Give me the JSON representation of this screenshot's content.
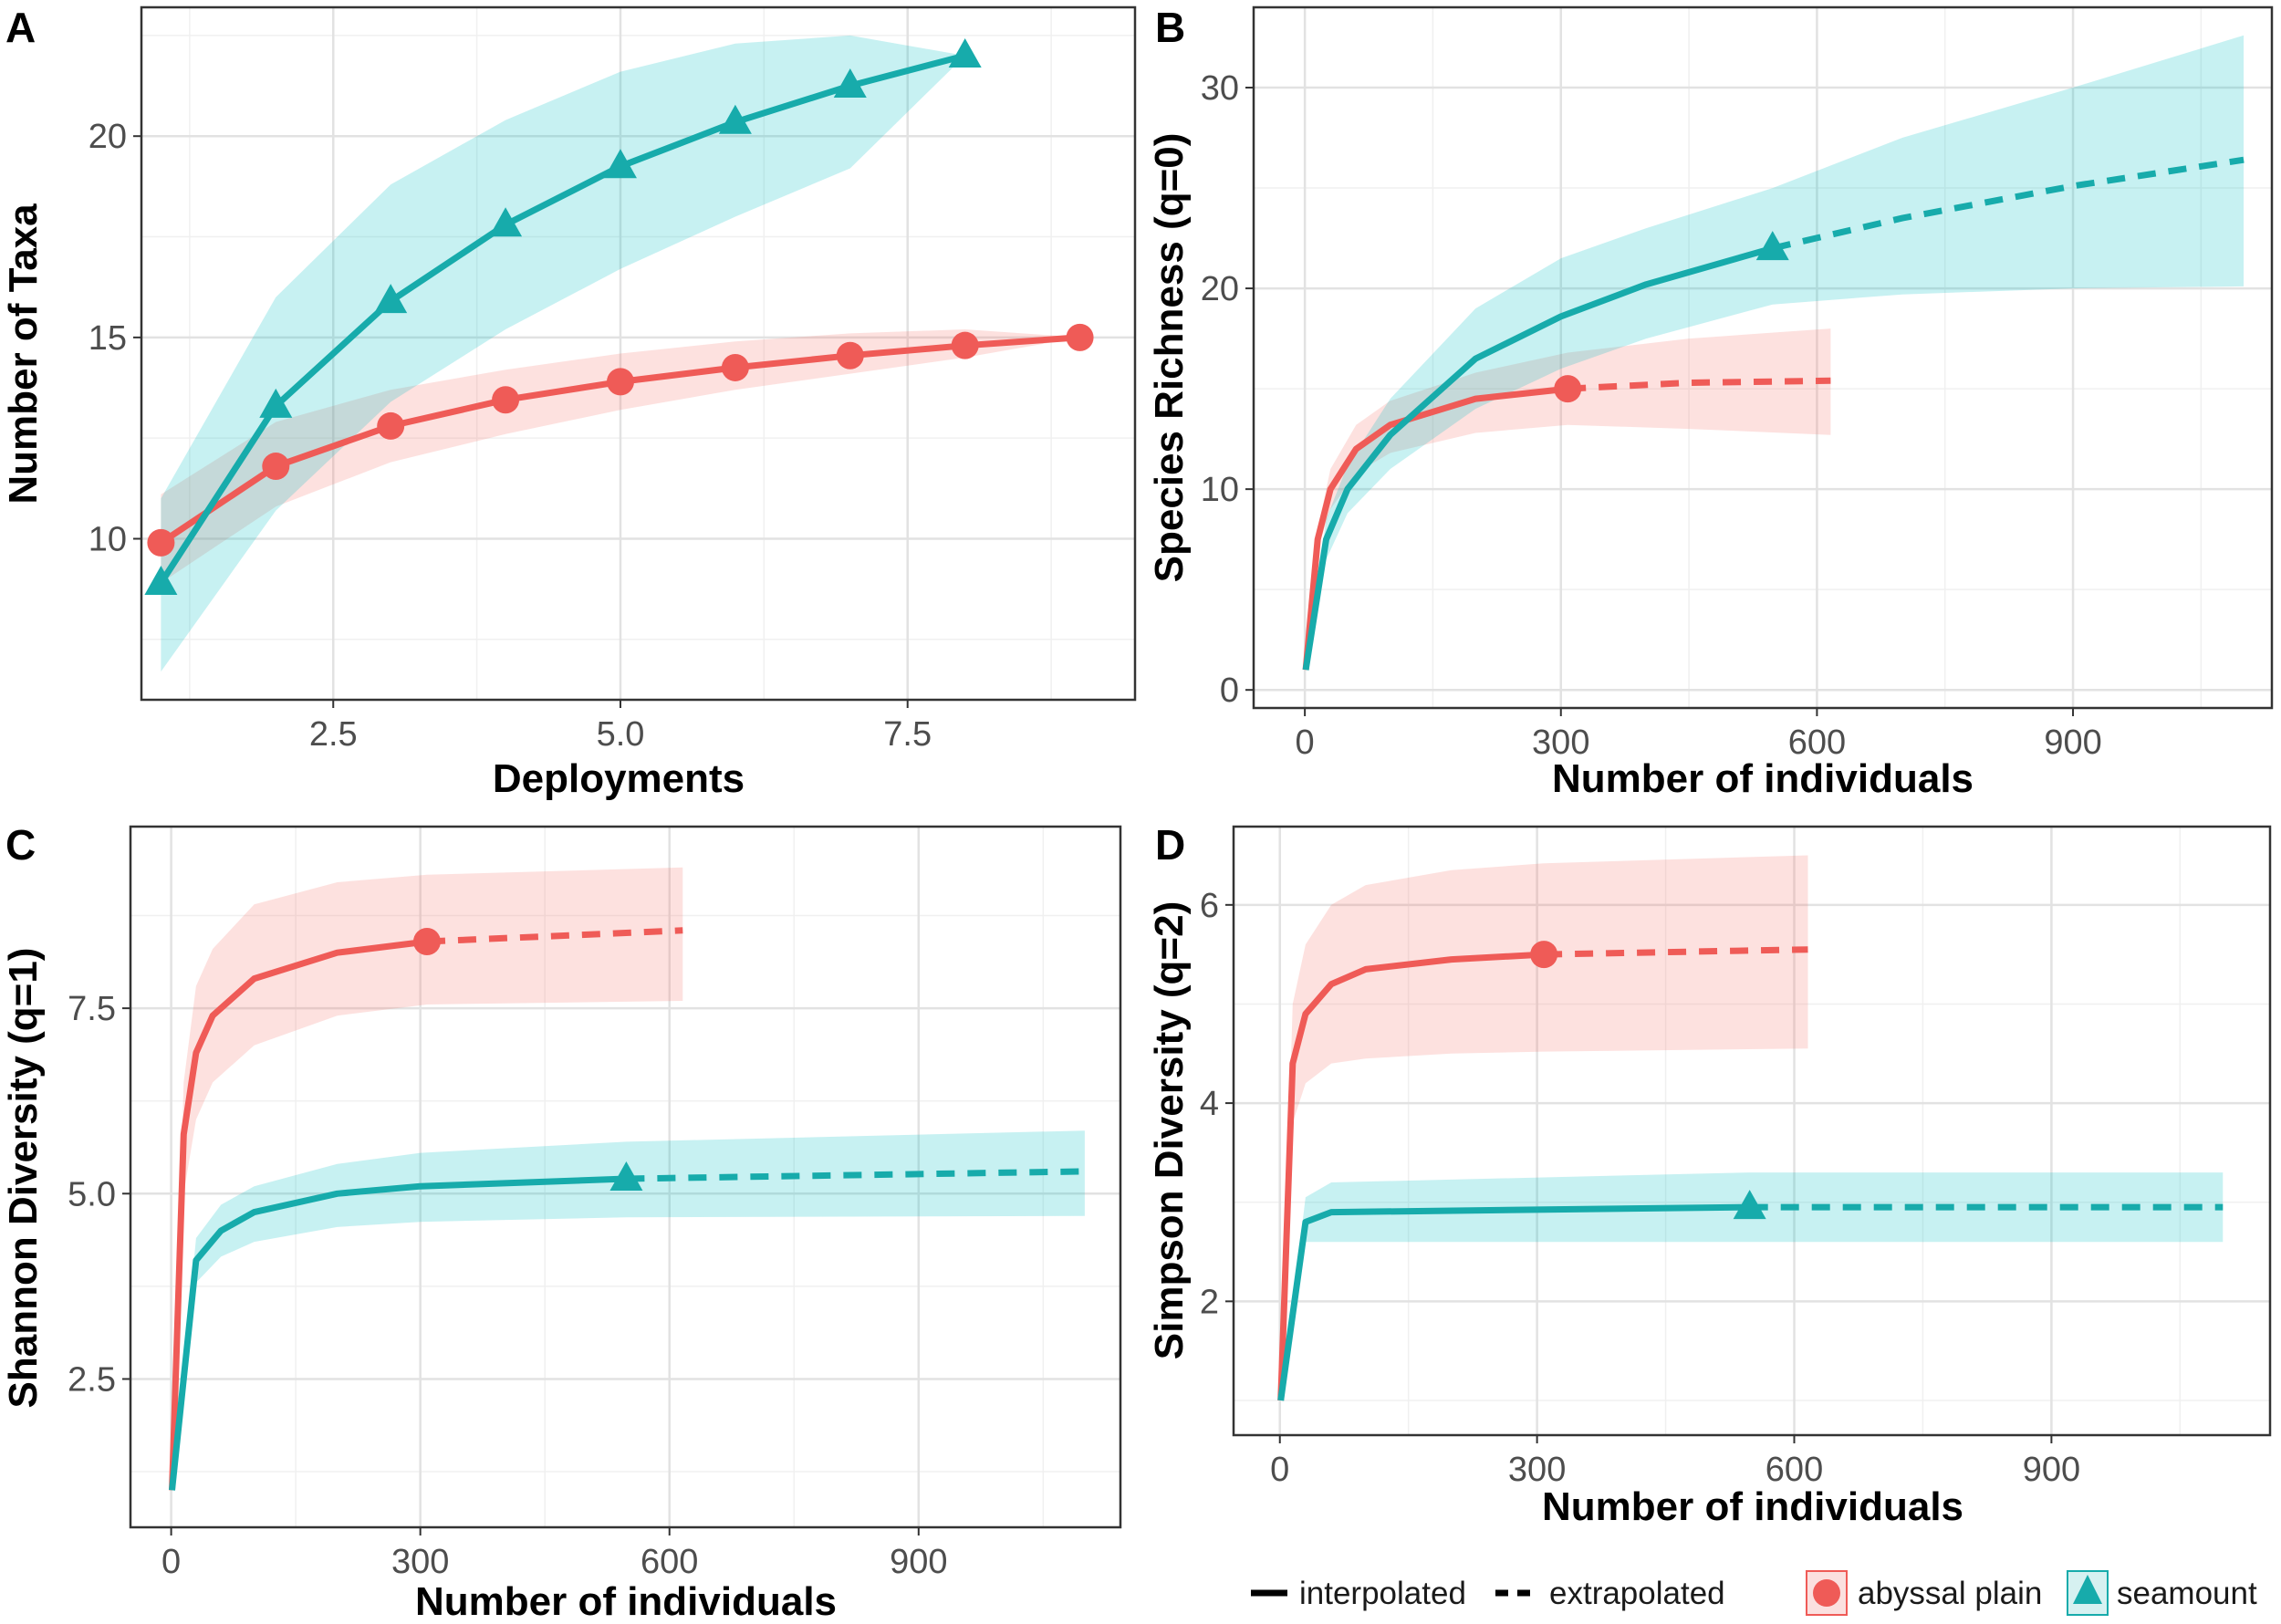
{
  "colors": {
    "abyssal_plain": "#EF5B57",
    "seamount": "#17ABAB",
    "abyssal_band": "#F8766D",
    "seamount_band": "#00BFC4"
  },
  "legend": {
    "interpolated": "interpolated",
    "extrapolated": "extrapolated",
    "abyssal_plain": "abyssal plain",
    "seamount": "seamount",
    "placement": "bottom-right"
  },
  "chart_data": [
    {
      "panel": "A",
      "type": "line",
      "grid": true,
      "xlabel": "Deployments",
      "ylabel": "Number of Taxa",
      "xlim": [
        0.83,
        9.48
      ],
      "ylim": [
        6.0,
        23.2
      ],
      "xticks": [
        2.5,
        5.0,
        7.5
      ],
      "xtick_labels": [
        "2.5",
        "5.0",
        "7.5"
      ],
      "yticks": [
        10,
        15,
        20
      ],
      "ytick_labels": [
        "10",
        "15",
        "20"
      ],
      "series": [
        {
          "name": "abyssal plain",
          "marker": "circle",
          "x": [
            1,
            2,
            3,
            4,
            5,
            6,
            7,
            8,
            9
          ],
          "y": [
            9.9,
            11.8,
            12.8,
            13.45,
            13.9,
            14.25,
            14.55,
            14.8,
            15.0
          ],
          "lower": [
            8.9,
            10.8,
            11.9,
            12.6,
            13.2,
            13.7,
            14.1,
            14.5,
            15.0
          ],
          "upper": [
            11.1,
            12.9,
            13.7,
            14.2,
            14.6,
            14.9,
            15.1,
            15.2,
            15.0
          ]
        },
        {
          "name": "seamount",
          "marker": "triangle",
          "x": [
            1,
            2,
            3,
            4,
            5,
            6,
            7,
            8
          ],
          "y": [
            8.9,
            13.3,
            15.9,
            17.8,
            19.25,
            20.35,
            21.25,
            22.0
          ],
          "lower": [
            6.7,
            10.7,
            13.4,
            15.2,
            16.7,
            18.0,
            19.2,
            22.0
          ],
          "upper": [
            11.0,
            16.0,
            18.8,
            20.4,
            21.6,
            22.3,
            22.5,
            22.0
          ]
        }
      ]
    },
    {
      "panel": "B",
      "type": "line",
      "grid": true,
      "xlabel": "Number of individuals",
      "ylabel": "Species Richness (q=0)",
      "xlim": [
        -60,
        1133
      ],
      "ylim": [
        -0.9,
        34
      ],
      "xticks": [
        0,
        300,
        600,
        900
      ],
      "xtick_labels": [
        "0",
        "300",
        "600",
        "900"
      ],
      "yticks": [
        0,
        10,
        20,
        30
      ],
      "ytick_labels": [
        "0",
        "10",
        "20",
        "30"
      ],
      "series": [
        {
          "name": "abyssal plain",
          "marker": "circle",
          "interpolated": {
            "x": [
              1,
              15,
              30,
              60,
              100,
              200,
              308
            ],
            "y": [
              1,
              7.5,
              10,
              12,
              13.2,
              14.5,
              15
            ]
          },
          "observed": {
            "x": 308,
            "y": 15
          },
          "extrapolated": {
            "x": [
              308,
              450,
              616
            ],
            "y": [
              15,
              15.3,
              15.4
            ]
          },
          "band": {
            "x": [
              1,
              15,
              30,
              60,
              100,
              200,
              308,
              450,
              616
            ],
            "lower": [
              1,
              7,
              9,
              10.8,
              11.8,
              12.8,
              13.2,
              13,
              12.7
            ],
            "upper": [
              1,
              8,
              11,
              13.2,
              14.4,
              15.8,
              16.8,
              17.5,
              18
            ]
          }
        },
        {
          "name": "seamount",
          "marker": "triangle",
          "interpolated": {
            "x": [
              1,
              25,
              50,
              100,
              200,
              300,
              400,
              548
            ],
            "y": [
              1,
              7.5,
              10,
              12.7,
              16.5,
              18.6,
              20.2,
              22
            ]
          },
          "observed": {
            "x": 548,
            "y": 22
          },
          "extrapolated": {
            "x": [
              548,
              700,
              900,
              1100
            ],
            "y": [
              22,
              23.5,
              25.1,
              26.4
            ]
          },
          "band": {
            "x": [
              1,
              25,
              50,
              100,
              200,
              300,
              400,
              548,
              700,
              900,
              1100
            ],
            "lower": [
              1,
              6.5,
              8.8,
              11,
              14,
              16,
              17.5,
              19.2,
              19.7,
              20,
              20.1
            ],
            "upper": [
              1,
              8.5,
              11.2,
              14.5,
              19,
              21.5,
              23,
              25,
              27.5,
              30,
              32.6
            ]
          }
        }
      ]
    },
    {
      "panel": "C",
      "type": "line",
      "grid": true,
      "xlabel": "Number of individuals",
      "ylabel": "Shannon Diversity (q=1)",
      "xlim": [
        -49,
        1143
      ],
      "ylim": [
        0.5,
        9.95
      ],
      "xticks": [
        0,
        300,
        600,
        900
      ],
      "xtick_labels": [
        "0",
        "300",
        "600",
        "900"
      ],
      "yticks": [
        2.5,
        5.0,
        7.5
      ],
      "ytick_labels": [
        "2.5",
        "5.0",
        "7.5"
      ],
      "series": [
        {
          "name": "abyssal plain",
          "marker": "circle",
          "interpolated": {
            "x": [
              1,
              15,
              30,
              50,
              100,
              200,
              308
            ],
            "y": [
              1,
              5.8,
              6.9,
              7.4,
              7.9,
              8.25,
              8.4
            ]
          },
          "observed": {
            "x": 308,
            "y": 8.4
          },
          "extrapolated": {
            "x": [
              308,
              616
            ],
            "y": [
              8.4,
              8.55
            ]
          },
          "band": {
            "x": [
              1,
              15,
              30,
              50,
              100,
              200,
              308,
              616
            ],
            "lower": [
              1,
              5,
              6,
              6.5,
              7.0,
              7.4,
              7.55,
              7.6
            ],
            "upper": [
              1,
              6.5,
              7.8,
              8.3,
              8.9,
              9.2,
              9.3,
              9.4
            ]
          }
        },
        {
          "name": "seamount",
          "marker": "triangle",
          "interpolated": {
            "x": [
              1,
              30,
              60,
              100,
              200,
              300,
              548
            ],
            "y": [
              1,
              4.1,
              4.5,
              4.75,
              5.0,
              5.1,
              5.2
            ]
          },
          "observed": {
            "x": 548,
            "y": 5.2
          },
          "extrapolated": {
            "x": [
              548,
              1100
            ],
            "y": [
              5.2,
              5.3
            ]
          },
          "band": {
            "x": [
              1,
              30,
              60,
              100,
              200,
              300,
              548,
              1100
            ],
            "lower": [
              1,
              3.8,
              4.15,
              4.35,
              4.55,
              4.62,
              4.68,
              4.7
            ],
            "upper": [
              1,
              4.4,
              4.85,
              5.1,
              5.4,
              5.55,
              5.7,
              5.85
            ]
          }
        }
      ]
    },
    {
      "panel": "D",
      "type": "line",
      "grid": true,
      "xlabel": "Number of individuals",
      "ylabel": "Simpson Diversity (q=2)",
      "xlim": [
        -54,
        1155
      ],
      "ylim": [
        0.65,
        6.79
      ],
      "xticks": [
        0,
        300,
        600,
        900
      ],
      "xtick_labels": [
        "0",
        "300",
        "600",
        "900"
      ],
      "yticks": [
        2,
        4,
        6
      ],
      "ytick_labels": [
        "2",
        "4",
        "6"
      ],
      "series": [
        {
          "name": "abyssal plain",
          "marker": "circle",
          "interpolated": {
            "x": [
              1,
              15,
              30,
              60,
              100,
              200,
              308
            ],
            "y": [
              1,
              4.4,
              4.9,
              5.2,
              5.35,
              5.45,
              5.5
            ]
          },
          "observed": {
            "x": 308,
            "y": 5.5
          },
          "extrapolated": {
            "x": [
              308,
              616
            ],
            "y": [
              5.5,
              5.55
            ]
          },
          "band": {
            "x": [
              1,
              15,
              30,
              60,
              100,
              200,
              308,
              616
            ],
            "lower": [
              1,
              3.8,
              4.2,
              4.4,
              4.45,
              4.5,
              4.52,
              4.55
            ],
            "upper": [
              1,
              5,
              5.6,
              6.0,
              6.2,
              6.35,
              6.42,
              6.5
            ]
          }
        },
        {
          "name": "seamount",
          "marker": "triangle",
          "interpolated": {
            "x": [
              1,
              30,
              60,
              548
            ],
            "y": [
              1,
              2.8,
              2.9,
              2.95
            ]
          },
          "observed": {
            "x": 548,
            "y": 2.95
          },
          "extrapolated": {
            "x": [
              548,
              1100
            ],
            "y": [
              2.95,
              2.95
            ]
          },
          "band": {
            "x": [
              1,
              30,
              60,
              548,
              1100
            ],
            "lower": [
              1,
              2.6,
              2.6,
              2.6,
              2.6
            ],
            "upper": [
              1,
              3.05,
              3.2,
              3.3,
              3.3
            ]
          }
        }
      ]
    }
  ]
}
